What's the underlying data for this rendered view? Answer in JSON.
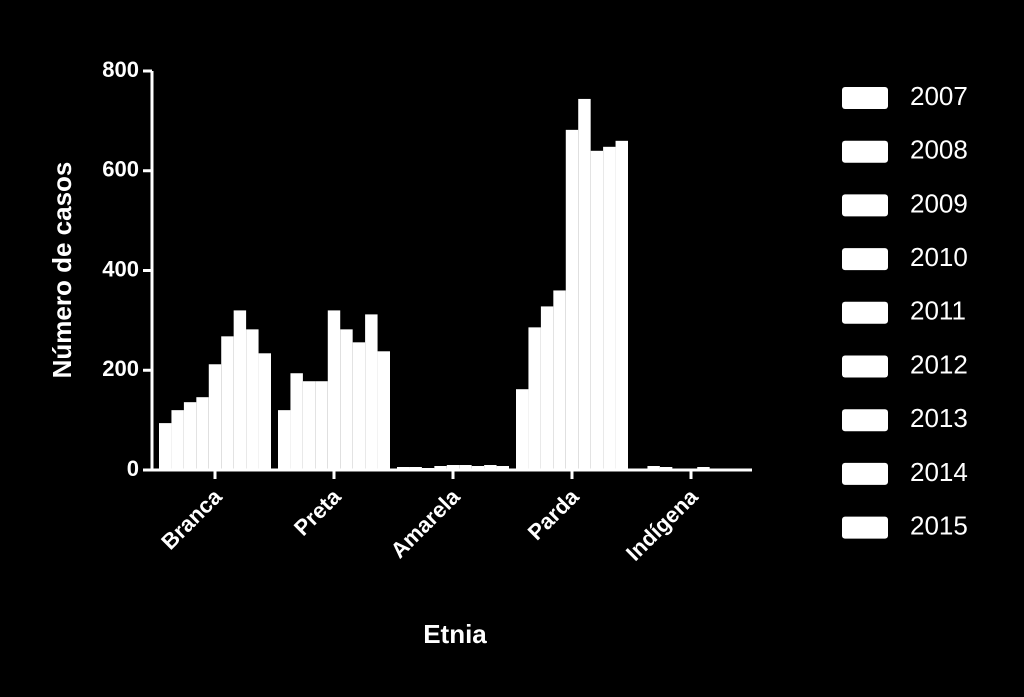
{
  "chart_data": {
    "type": "bar",
    "x_label": "Etnia",
    "y_label": "Número de casos",
    "categories": [
      "Branca",
      "Preta",
      "Amarela",
      "Parda",
      "Indígena"
    ],
    "series": [
      {
        "name": "2007",
        "color": "#ffffff",
        "values": [
          94,
          120,
          6,
          162,
          2
        ]
      },
      {
        "name": "2008",
        "color": "#ffffff",
        "values": [
          120,
          194,
          6,
          286,
          8
        ]
      },
      {
        "name": "2009",
        "color": "#ffffff",
        "values": [
          136,
          178,
          4,
          328,
          6
        ]
      },
      {
        "name": "2010",
        "color": "#ffffff",
        "values": [
          146,
          178,
          8,
          360,
          2
        ]
      },
      {
        "name": "2011",
        "color": "#ffffff",
        "values": [
          212,
          320,
          10,
          682,
          2
        ]
      },
      {
        "name": "2012",
        "color": "#ffffff",
        "values": [
          268,
          282,
          10,
          744,
          6
        ]
      },
      {
        "name": "2013",
        "color": "#ffffff",
        "values": [
          320,
          256,
          8,
          640,
          2
        ]
      },
      {
        "name": "2014",
        "color": "#ffffff",
        "values": [
          282,
          312,
          10,
          648,
          2
        ]
      },
      {
        "name": "2015",
        "color": "#ffffff",
        "values": [
          234,
          238,
          8,
          660,
          2
        ]
      }
    ],
    "ylim": [
      0,
      800
    ],
    "yticks": [
      0,
      200,
      400,
      600,
      800
    ],
    "grid": false,
    "legend": "right"
  }
}
